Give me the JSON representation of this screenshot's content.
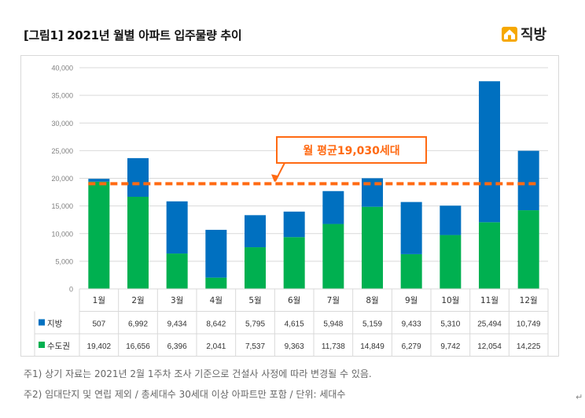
{
  "header": {
    "title": "[그림1] 2021년 월별 아파트 입주물량 추이",
    "logo_text": "직방"
  },
  "notes": [
    "주1) 상기 자료는 2021년 2월 1주차 조사 기준으로 건설사 사정에 따라 변경될 수 있음.",
    "주2) 임대단지 및 연립 제외 / 총세대수 30세대 이상 아파트만 포함 / 단위: 세대수"
  ],
  "colors": {
    "jibang": "#0070c0",
    "sudogwon": "#00b050",
    "average": "#ff6a13",
    "grid": "#d9d9d9"
  },
  "chart_data": {
    "type": "bar",
    "stacked": true,
    "categories": [
      "1월",
      "2월",
      "3월",
      "4월",
      "5월",
      "6월",
      "7월",
      "8월",
      "9월",
      "10월",
      "11월",
      "12월"
    ],
    "series": [
      {
        "name": "수도권",
        "values": [
          19402,
          16656,
          6396,
          2041,
          7537,
          9363,
          11738,
          14849,
          6279,
          9742,
          12054,
          14225
        ],
        "labels": [
          "19,402",
          "16,656",
          "6,396",
          "2,041",
          "7,537",
          "9,363",
          "11,738",
          "14,849",
          "6,279",
          "9,742",
          "12,054",
          "14,225"
        ]
      },
      {
        "name": "지방",
        "values": [
          507,
          6992,
          9434,
          8642,
          5795,
          4615,
          5948,
          5159,
          9433,
          5310,
          25494,
          10749
        ],
        "labels": [
          "507",
          "6,992",
          "9,434",
          "8,642",
          "5,795",
          "4,615",
          "5,948",
          "5,159",
          "9,433",
          "5,310",
          "25,494",
          "10,749"
        ]
      }
    ],
    "yticks": [
      "0",
      "5,000",
      "10,000",
      "15,000",
      "20,000",
      "25,000",
      "30,000",
      "35,000",
      "40,000"
    ],
    "ylim": [
      0,
      40000
    ],
    "average": {
      "value": 19030,
      "label": "월 평균19,030세대"
    },
    "grid": true,
    "legend": "data-table"
  }
}
